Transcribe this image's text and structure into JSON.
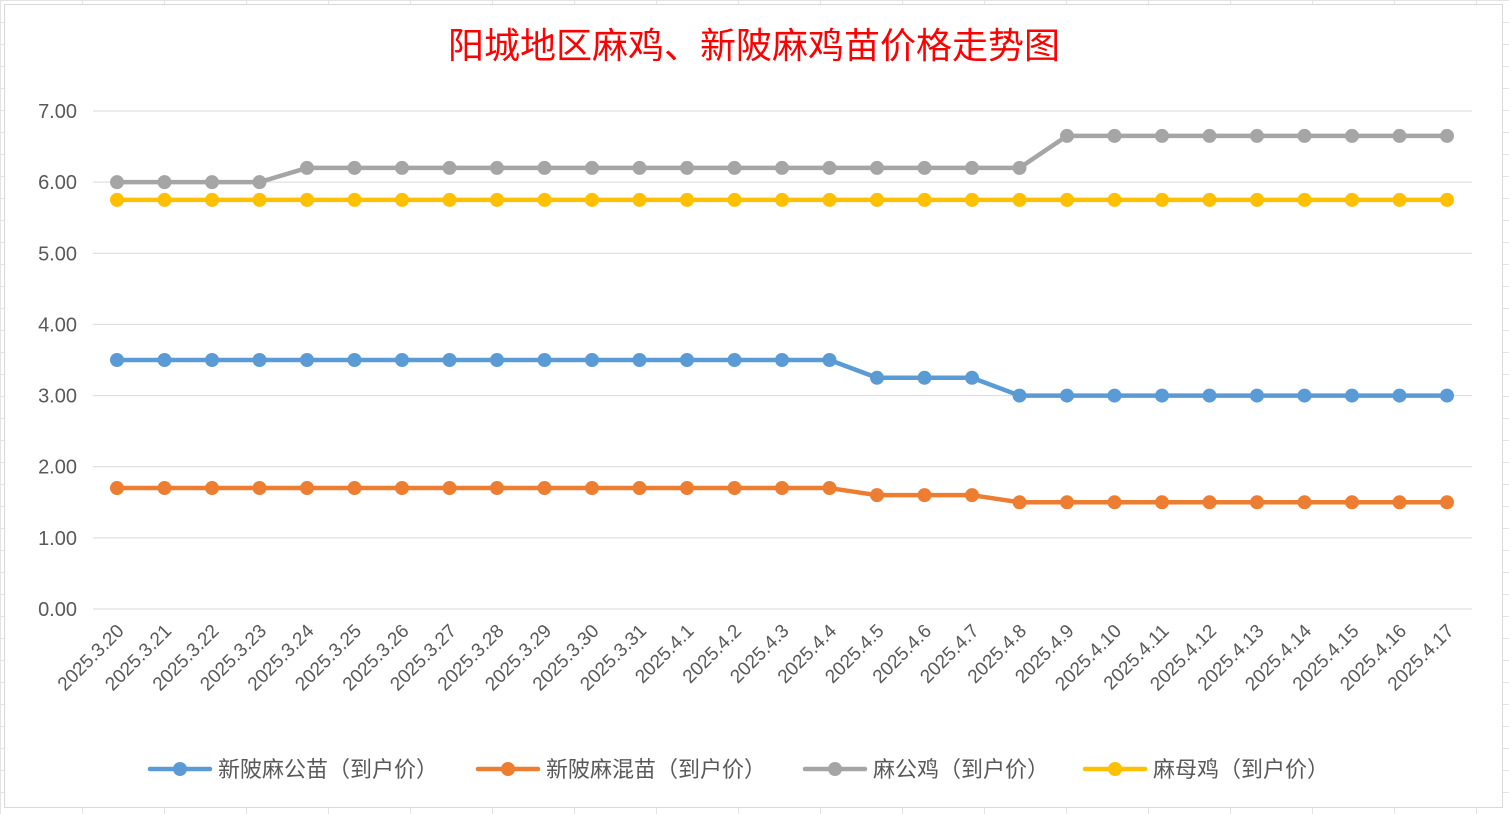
{
  "chart_data": {
    "type": "line",
    "title": "阳城地区麻鸡、新陂麻鸡苗价格走势图",
    "title_color": "#ff0000",
    "xlabel": "",
    "ylabel": "",
    "ylim": [
      0,
      7
    ],
    "yticks": [
      "0.00",
      "1.00",
      "2.00",
      "3.00",
      "4.00",
      "5.00",
      "6.00",
      "7.00"
    ],
    "grid": true,
    "legend_position": "bottom",
    "categories": [
      "2025.3.20",
      "2025.3.21",
      "2025.3.22",
      "2025.3.23",
      "2025.3.24",
      "2025.3.25",
      "2025.3.26",
      "2025.3.27",
      "2025.3.28",
      "2025.3.29",
      "2025.3.30",
      "2025.3.31",
      "2025.4.1",
      "2025.4.2",
      "2025.4.3",
      "2025.4.4",
      "2025.4.5",
      "2025.4.6",
      "2025.4.7",
      "2025.4.8",
      "2025.4.9",
      "2025.4.10",
      "2025.4.11",
      "2025.4.12",
      "2025.4.13",
      "2025.4.14",
      "2025.4.15",
      "2025.4.16",
      "2025.4.17"
    ],
    "series": [
      {
        "name": "新陂麻公苗（到户价）",
        "color": "#5b9bd5",
        "values": [
          3.5,
          3.5,
          3.5,
          3.5,
          3.5,
          3.5,
          3.5,
          3.5,
          3.5,
          3.5,
          3.5,
          3.5,
          3.5,
          3.5,
          3.5,
          3.5,
          3.25,
          3.25,
          3.25,
          3.0,
          3.0,
          3.0,
          3.0,
          3.0,
          3.0,
          3.0,
          3.0,
          3.0,
          3.0
        ]
      },
      {
        "name": "新陂麻混苗（到户价）",
        "color": "#ed7d31",
        "values": [
          1.7,
          1.7,
          1.7,
          1.7,
          1.7,
          1.7,
          1.7,
          1.7,
          1.7,
          1.7,
          1.7,
          1.7,
          1.7,
          1.7,
          1.7,
          1.7,
          1.6,
          1.6,
          1.6,
          1.5,
          1.5,
          1.5,
          1.5,
          1.5,
          1.5,
          1.5,
          1.5,
          1.5,
          1.5
        ]
      },
      {
        "name": "麻公鸡（到户价）",
        "color": "#a5a5a5",
        "values": [
          6.0,
          6.0,
          6.0,
          6.0,
          6.2,
          6.2,
          6.2,
          6.2,
          6.2,
          6.2,
          6.2,
          6.2,
          6.2,
          6.2,
          6.2,
          6.2,
          6.2,
          6.2,
          6.2,
          6.2,
          6.65,
          6.65,
          6.65,
          6.65,
          6.65,
          6.65,
          6.65,
          6.65,
          6.65
        ]
      },
      {
        "name": "麻母鸡（到户价）",
        "color": "#ffc000",
        "values": [
          5.75,
          5.75,
          5.75,
          5.75,
          5.75,
          5.75,
          5.75,
          5.75,
          5.75,
          5.75,
          5.75,
          5.75,
          5.75,
          5.75,
          5.75,
          5.75,
          5.75,
          5.75,
          5.75,
          5.75,
          5.75,
          5.75,
          5.75,
          5.75,
          5.75,
          5.75,
          5.75,
          5.75,
          5.75
        ]
      }
    ]
  }
}
